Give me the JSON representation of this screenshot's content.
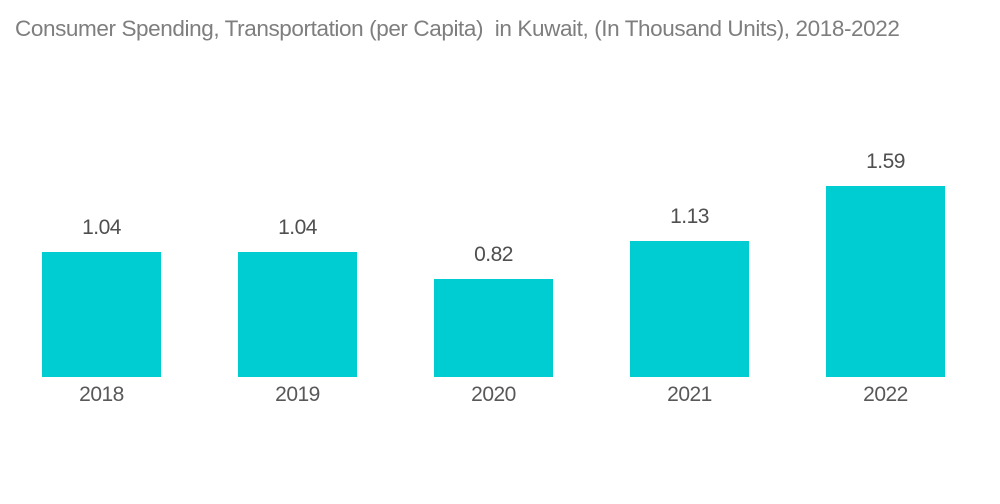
{
  "chart_data": {
    "type": "bar",
    "title": "Consumer Spending, Transportation (per Capita)  in Kuwait, (In Thousand Units), 2018-2022",
    "categories": [
      "2018",
      "2019",
      "2020",
      "2021",
      "2022"
    ],
    "values": [
      1.04,
      1.04,
      0.82,
      1.13,
      1.59
    ],
    "value_labels": [
      "1.04",
      "1.04",
      "0.82",
      "1.13",
      "1.59"
    ],
    "xlabel": "",
    "ylabel": "",
    "ylim": [
      0,
      1.7
    ],
    "grid": false,
    "legend": false,
    "axes_visible": false,
    "data_label_position": "above-bar",
    "bar_color": "#00CDD2",
    "background_color": "#FFFFFF",
    "title_color": "#7E7E7E",
    "value_label_color": "#4F4F4F",
    "category_label_color": "#58585A"
  }
}
